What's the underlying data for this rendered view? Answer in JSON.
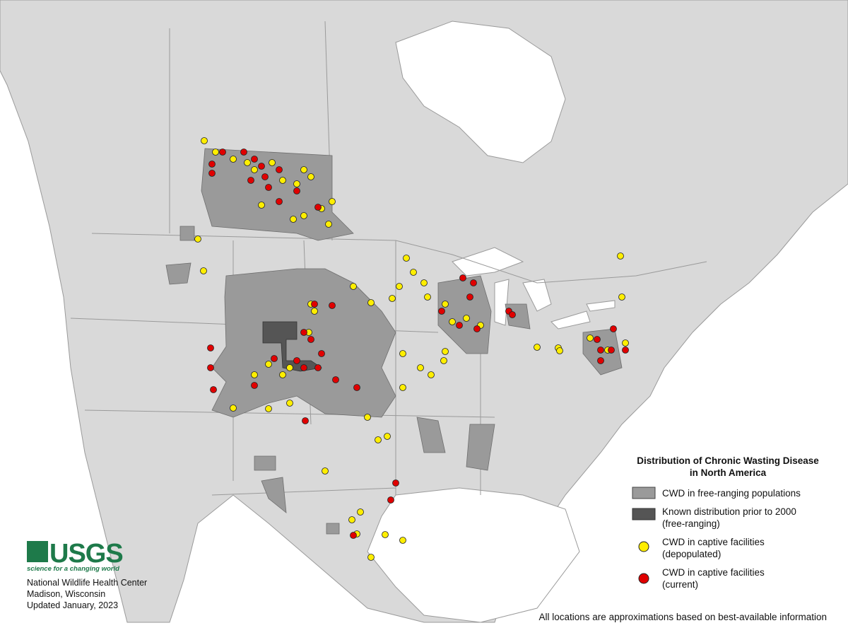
{
  "legend": {
    "title_line1": "Distribution of Chronic Wasting Disease",
    "title_line2": "in North America",
    "items": [
      {
        "line1": "CWD in free-ranging populations"
      },
      {
        "line1": "Known distribution prior to 2000",
        "line2": "(free-ranging)"
      },
      {
        "line1": "CWD in captive facilities",
        "line2": "(depopulated)"
      },
      {
        "line1": "CWD in captive facilities",
        "line2": "(current)"
      }
    ]
  },
  "logo": {
    "name": "USGS",
    "tagline": "science for a changing world"
  },
  "credits": [
    "National Wildlife Health Center",
    "Madison, Wisconsin",
    "Updated January, 2023"
  ],
  "footnote": "All locations are approximations based on best-available information"
}
